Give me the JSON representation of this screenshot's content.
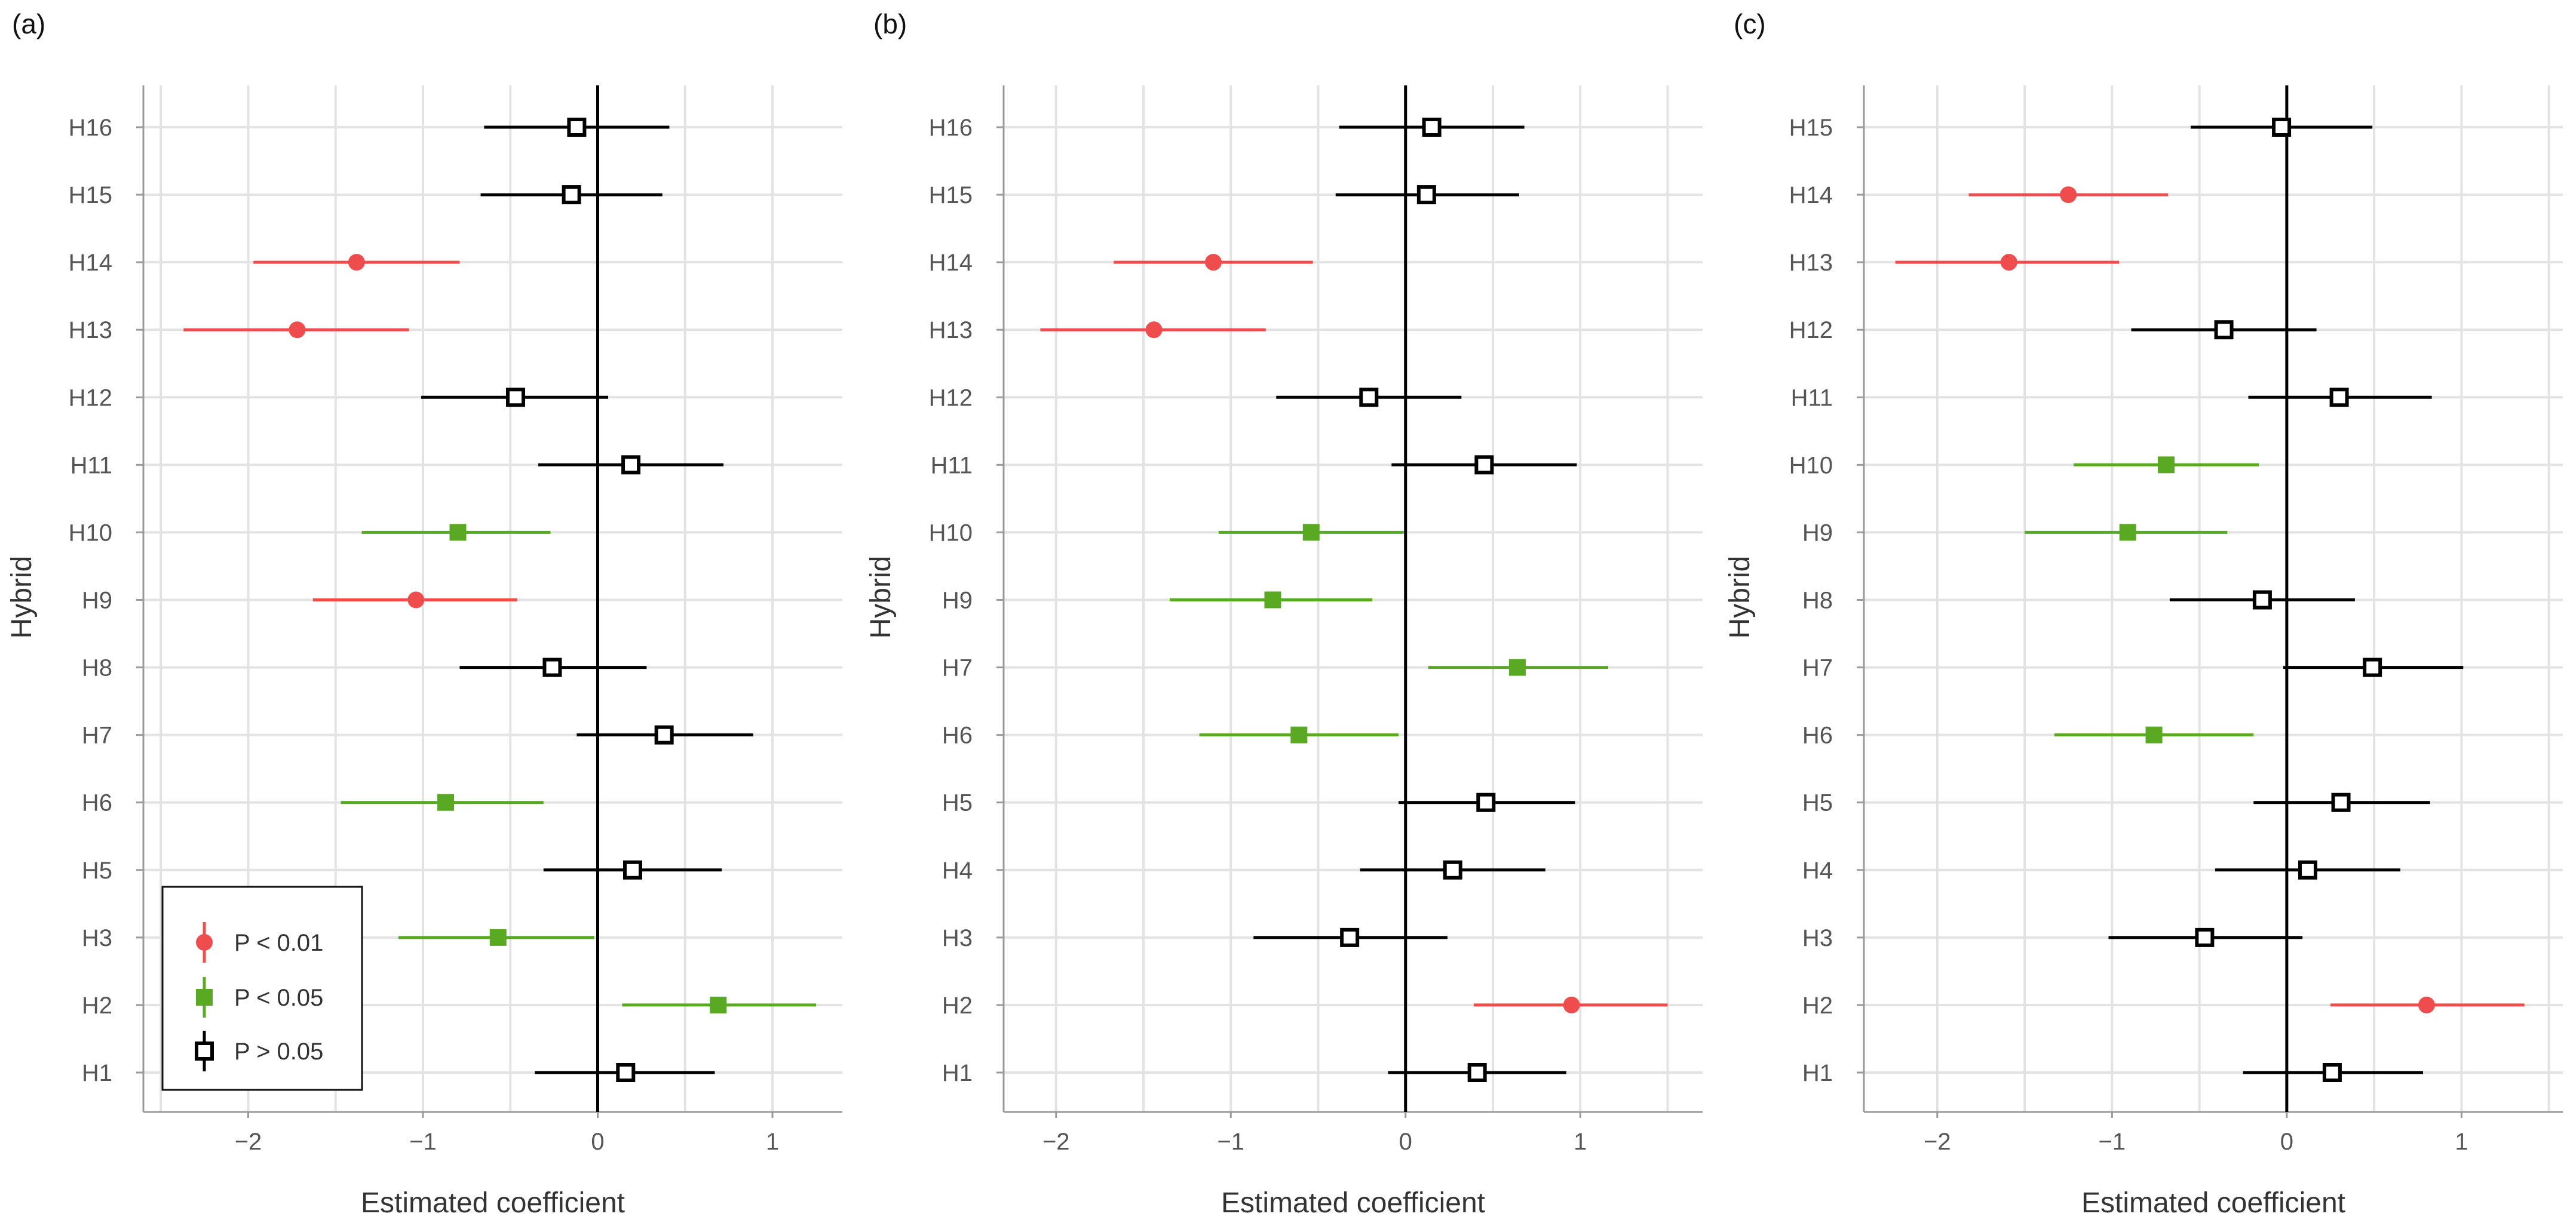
{
  "figure": {
    "legend": {
      "entries": [
        {
          "label": "P < 0.01",
          "category": "p01"
        },
        {
          "label": "P < 0.05",
          "category": "p05"
        },
        {
          "label": "P > 0.05",
          "category": "ns"
        }
      ],
      "placement": "bottom-left of panel (a)"
    },
    "colors": {
      "p01": "#ef4d4d",
      "p05": "#5aa923",
      "ns": "#000000",
      "grid": "#e3e3e3",
      "axis": "#9a9a9a",
      "tick_text": "#555555",
      "title_text": "#333333"
    }
  },
  "chart_data": [
    {
      "type": "scatter",
      "subtype": "coefficient-plot",
      "panel_label": "(a)",
      "xlabel": "Estimated coefficient",
      "ylabel": "Hybrid",
      "xlim": [
        -2.6,
        1.4
      ],
      "xticks": [
        -2,
        -1,
        0,
        1
      ],
      "xtick_labels": [
        "−2",
        "−1",
        "0",
        "1"
      ],
      "zero_line": true,
      "show_legend": true,
      "points": [
        {
          "label": "H16",
          "estimate": -0.12,
          "low": -0.65,
          "high": 0.41,
          "significance": "ns"
        },
        {
          "label": "H15",
          "estimate": -0.15,
          "low": -0.67,
          "high": 0.37,
          "significance": "ns"
        },
        {
          "label": "H14",
          "estimate": -1.38,
          "low": -1.97,
          "high": -0.79,
          "significance": "p01"
        },
        {
          "label": "H13",
          "estimate": -1.72,
          "low": -2.37,
          "high": -1.08,
          "significance": "p01"
        },
        {
          "label": "H12",
          "estimate": -0.47,
          "low": -1.01,
          "high": 0.06,
          "significance": "ns"
        },
        {
          "label": "H11",
          "estimate": 0.19,
          "low": -0.34,
          "high": 0.72,
          "significance": "ns"
        },
        {
          "label": "H10",
          "estimate": -0.8,
          "low": -1.35,
          "high": -0.27,
          "significance": "p05"
        },
        {
          "label": "H9",
          "estimate": -1.04,
          "low": -1.63,
          "high": -0.46,
          "significance": "p01"
        },
        {
          "label": "H8",
          "estimate": -0.26,
          "low": -0.79,
          "high": 0.28,
          "significance": "ns"
        },
        {
          "label": "H7",
          "estimate": 0.38,
          "low": -0.12,
          "high": 0.89,
          "significance": "ns"
        },
        {
          "label": "H6",
          "estimate": -0.87,
          "low": -1.47,
          "high": -0.31,
          "significance": "p05"
        },
        {
          "label": "H5",
          "estimate": 0.2,
          "low": -0.31,
          "high": 0.71,
          "significance": "ns"
        },
        {
          "label": "H3",
          "estimate": -0.57,
          "low": -1.14,
          "high": -0.02,
          "significance": "p05"
        },
        {
          "label": "H2",
          "estimate": 0.69,
          "low": 0.14,
          "high": 1.25,
          "significance": "p05"
        },
        {
          "label": "H1",
          "estimate": 0.16,
          "low": -0.36,
          "high": 0.67,
          "significance": "ns"
        }
      ]
    },
    {
      "type": "scatter",
      "subtype": "coefficient-plot",
      "panel_label": "(b)",
      "xlabel": "Estimated coefficient",
      "ylabel": "Hybrid",
      "xlim": [
        -2.3,
        1.7
      ],
      "xticks": [
        -2,
        -1,
        0,
        1
      ],
      "xtick_labels": [
        "−2",
        "−1",
        "0",
        "1"
      ],
      "zero_line": true,
      "show_legend": false,
      "points": [
        {
          "label": "H16",
          "estimate": 0.15,
          "low": -0.38,
          "high": 0.68,
          "significance": "ns"
        },
        {
          "label": "H15",
          "estimate": 0.12,
          "low": -0.4,
          "high": 0.65,
          "significance": "ns"
        },
        {
          "label": "H14",
          "estimate": -1.1,
          "low": -1.67,
          "high": -0.53,
          "significance": "p01"
        },
        {
          "label": "H13",
          "estimate": -1.44,
          "low": -2.09,
          "high": -0.8,
          "significance": "p01"
        },
        {
          "label": "H12",
          "estimate": -0.21,
          "low": -0.74,
          "high": 0.32,
          "significance": "ns"
        },
        {
          "label": "H11",
          "estimate": 0.45,
          "low": -0.08,
          "high": 0.98,
          "significance": "ns"
        },
        {
          "label": "H10",
          "estimate": -0.54,
          "low": -1.07,
          "high": -0.01,
          "significance": "p05"
        },
        {
          "label": "H9",
          "estimate": -0.76,
          "low": -1.35,
          "high": -0.19,
          "significance": "p05"
        },
        {
          "label": "H7",
          "estimate": 0.64,
          "low": 0.13,
          "high": 1.16,
          "significance": "p05"
        },
        {
          "label": "H6",
          "estimate": -0.61,
          "low": -1.18,
          "high": -0.04,
          "significance": "p05"
        },
        {
          "label": "H5",
          "estimate": 0.46,
          "low": -0.04,
          "high": 0.97,
          "significance": "ns"
        },
        {
          "label": "H4",
          "estimate": 0.27,
          "low": -0.26,
          "high": 0.8,
          "significance": "ns"
        },
        {
          "label": "H3",
          "estimate": -0.32,
          "low": -0.87,
          "high": 0.24,
          "significance": "ns"
        },
        {
          "label": "H2",
          "estimate": 0.95,
          "low": 0.39,
          "high": 1.5,
          "significance": "p01"
        },
        {
          "label": "H1",
          "estimate": 0.41,
          "low": -0.1,
          "high": 0.92,
          "significance": "ns"
        }
      ]
    },
    {
      "type": "scatter",
      "subtype": "coefficient-plot",
      "panel_label": "(c)",
      "xlabel": "Estimated coefficient",
      "ylabel": "Hybrid",
      "xlim": [
        -2.42,
        1.58
      ],
      "xticks": [
        -2,
        -1,
        0,
        1
      ],
      "xtick_labels": [
        "−2",
        "−1",
        "0",
        "1"
      ],
      "zero_line": true,
      "show_legend": false,
      "points": [
        {
          "label": "H15",
          "estimate": -0.03,
          "low": -0.55,
          "high": 0.49,
          "significance": "ns"
        },
        {
          "label": "H14",
          "estimate": -1.25,
          "low": -1.82,
          "high": -0.68,
          "significance": "p01"
        },
        {
          "label": "H13",
          "estimate": -1.59,
          "low": -2.24,
          "high": -0.96,
          "significance": "p01"
        },
        {
          "label": "H12",
          "estimate": -0.36,
          "low": -0.89,
          "high": 0.17,
          "significance": "ns"
        },
        {
          "label": "H11",
          "estimate": 0.3,
          "low": -0.22,
          "high": 0.83,
          "significance": "ns"
        },
        {
          "label": "H10",
          "estimate": -0.69,
          "low": -1.22,
          "high": -0.16,
          "significance": "p05"
        },
        {
          "label": "H9",
          "estimate": -0.91,
          "low": -1.5,
          "high": -0.34,
          "significance": "p05"
        },
        {
          "label": "H8",
          "estimate": -0.14,
          "low": -0.67,
          "high": 0.39,
          "significance": "ns"
        },
        {
          "label": "H7",
          "estimate": 0.49,
          "low": -0.02,
          "high": 1.01,
          "significance": "ns"
        },
        {
          "label": "H6",
          "estimate": -0.76,
          "low": -1.33,
          "high": -0.19,
          "significance": "p05"
        },
        {
          "label": "H5",
          "estimate": 0.31,
          "low": -0.19,
          "high": 0.82,
          "significance": "ns"
        },
        {
          "label": "H4",
          "estimate": 0.12,
          "low": -0.41,
          "high": 0.65,
          "significance": "ns"
        },
        {
          "label": "H3",
          "estimate": -0.47,
          "low": -1.02,
          "high": 0.09,
          "significance": "ns"
        },
        {
          "label": "H2",
          "estimate": 0.8,
          "low": 0.25,
          "high": 1.36,
          "significance": "p01"
        },
        {
          "label": "H1",
          "estimate": 0.26,
          "low": -0.25,
          "high": 0.78,
          "significance": "ns"
        }
      ]
    }
  ]
}
